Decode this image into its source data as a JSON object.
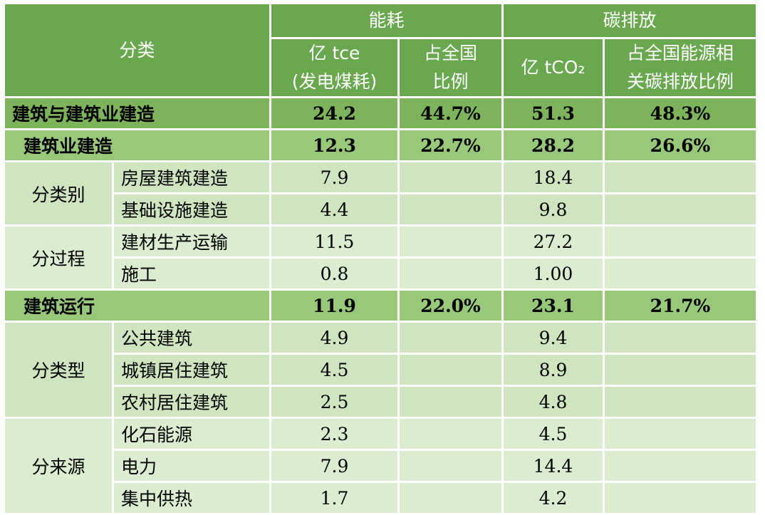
{
  "header": {
    "category": "分类",
    "energy": "能耗",
    "carbon": "碳排放",
    "energy_unit": "亿 tce\n(发电煤耗)",
    "energy_share": "占全国\n比例",
    "carbon_unit": "亿 tCO₂",
    "carbon_share": "占全国能源相\n关碳排放比例"
  },
  "totals": {
    "label": "建筑与建筑业建造",
    "energy": "24.2",
    "energy_share": "44.7%",
    "carbon": "51.3",
    "carbon_share": "48.3%"
  },
  "construction": {
    "label": "建筑业建造",
    "energy": "12.3",
    "energy_share": "22.7%",
    "carbon": "28.2",
    "carbon_share": "26.6%",
    "by_category": {
      "group": "分类别",
      "rows": [
        {
          "label": "房屋建筑建造",
          "energy": "7.9",
          "carbon": "18.4"
        },
        {
          "label": "基础设施建造",
          "energy": "4.4",
          "carbon": "9.8"
        }
      ]
    },
    "by_process": {
      "group": "分过程",
      "rows": [
        {
          "label": "建材生产运输",
          "energy": "11.5",
          "carbon": "27.2"
        },
        {
          "label": "施工",
          "energy": "0.8",
          "carbon": "1.00"
        }
      ]
    }
  },
  "operation": {
    "label": "建筑运行",
    "energy": "11.9",
    "energy_share": "22.0%",
    "carbon": "23.1",
    "carbon_share": "21.7%",
    "by_type": {
      "group": "分类型",
      "rows": [
        {
          "label": "公共建筑",
          "energy": "4.9",
          "carbon": "9.4"
        },
        {
          "label": "城镇居住建筑",
          "energy": "4.5",
          "carbon": "8.9"
        },
        {
          "label": "农村居住建筑",
          "energy": "2.5",
          "carbon": "4.8"
        }
      ]
    },
    "by_source": {
      "group": "分来源",
      "rows": [
        {
          "label": "化石能源",
          "energy": "2.3",
          "carbon": "4.5"
        },
        {
          "label": "电力",
          "energy": "7.9",
          "carbon": "14.4"
        },
        {
          "label": "集中供热",
          "energy": "1.7",
          "carbon": "4.2"
        }
      ]
    }
  },
  "colors": {
    "header": "#6aa84f",
    "level1": "#7cb35b",
    "level2": "#98c97a",
    "detail": "#cfe5c0"
  }
}
